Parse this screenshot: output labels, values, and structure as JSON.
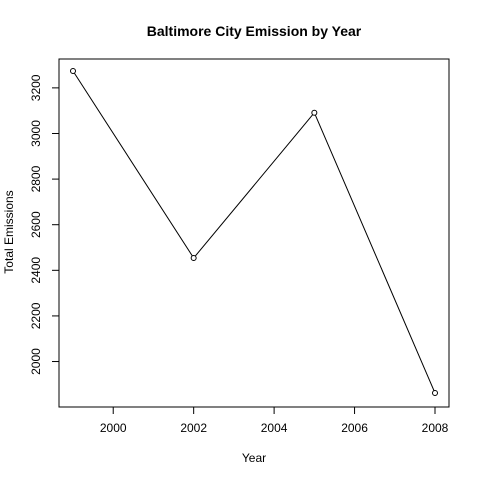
{
  "chart_data": {
    "type": "line",
    "title": "Baltimore City Emission by Year",
    "xlabel": "Year",
    "ylabel": "Total Emissions",
    "x": [
      1999,
      2002,
      2005,
      2008
    ],
    "series": [
      {
        "values": [
          3274,
          2454,
          3091,
          1862
        ]
      }
    ],
    "xlim": [
      1999,
      2008
    ],
    "ylim": [
      1862,
      3274
    ],
    "xticks": [
      2000,
      2002,
      2004,
      2006,
      2008
    ],
    "yticks": [
      2000,
      2200,
      2400,
      2600,
      2800,
      3000,
      3200
    ],
    "marker": "open-circle",
    "line_color": "#000000",
    "grid": false,
    "legend": "none"
  }
}
